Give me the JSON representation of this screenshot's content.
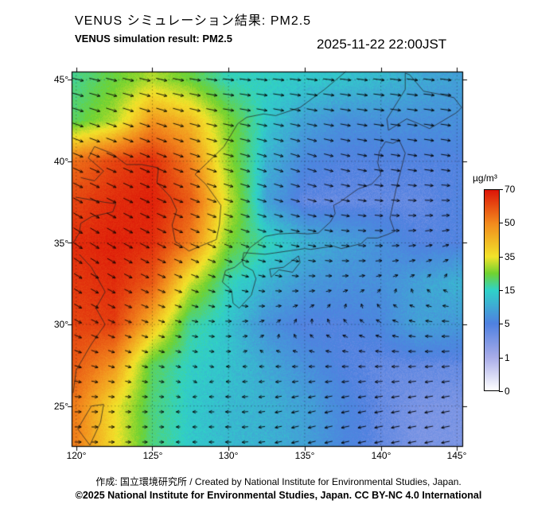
{
  "header": {
    "title_ja": "VENUS シミュレーション結果: PM2.5",
    "title_en": "VENUS simulation result: PM2.5",
    "timestamp": "2025-11-22 22:00JST"
  },
  "axes": {
    "lon_ticks": [
      "120°",
      "125°",
      "130°",
      "135°",
      "140°",
      "145°"
    ],
    "lat_ticks": [
      "45°",
      "40°",
      "35°",
      "30°",
      "25°"
    ],
    "lon_values": [
      120,
      125,
      130,
      135,
      140,
      145
    ],
    "lat_values": [
      45,
      40,
      35,
      30,
      25
    ]
  },
  "colorbar": {
    "unit": "µg/m³",
    "ticks": [
      "70",
      "50",
      "35",
      "15",
      "5",
      "1",
      "0"
    ],
    "stops": [
      {
        "v": 0,
        "t": 0,
        "c": "#ffffff"
      },
      {
        "v": 1,
        "t": 0.1667,
        "c": "#a7abe8"
      },
      {
        "v": 5,
        "t": 0.3333,
        "c": "#4f80e0"
      },
      {
        "v": 15,
        "t": 0.5,
        "c": "#2fd2c8"
      },
      {
        "v": 25,
        "t": 0.5833,
        "c": "#6fd231"
      },
      {
        "v": 35,
        "t": 0.6667,
        "c": "#f2e32a"
      },
      {
        "v": 50,
        "t": 0.8333,
        "c": "#f28a1d"
      },
      {
        "v": 70,
        "t": 1,
        "c": "#dd1508"
      }
    ]
  },
  "footer": {
    "credit": "作成: 国立環境研究所 / Created by National Institute for Environmental Studies, Japan.",
    "license": "©2025 National Institute for Environmental Studies, Japan. CC BY-NC 4.0 International"
  },
  "chart_data": {
    "type": "heatmap",
    "title": "VENUS simulation result: PM2.5",
    "unit": "µg/m³",
    "view_lon": [
      119.7,
      145.4
    ],
    "view_lat": [
      22.5,
      45.5
    ],
    "grid_lon": [
      120,
      122.5,
      125,
      127.5,
      130,
      132.5,
      135,
      137.5,
      140,
      142.5,
      145
    ],
    "grid_lat": [
      45,
      42.5,
      40,
      37.5,
      35,
      32.5,
      30,
      27.5,
      25
    ],
    "pm25": [
      [
        19,
        24,
        30,
        24,
        16,
        15,
        14,
        13,
        12,
        10,
        9
      ],
      [
        22,
        30,
        48,
        42,
        26,
        14,
        9,
        7,
        7,
        7,
        7
      ],
      [
        55,
        62,
        66,
        52,
        28,
        11,
        6,
        5,
        5,
        5,
        5
      ],
      [
        62,
        66,
        68,
        58,
        32,
        9,
        4,
        4,
        4,
        4,
        5
      ],
      [
        66,
        68,
        66,
        52,
        26,
        16,
        11,
        9,
        7,
        5,
        5
      ],
      [
        64,
        66,
        58,
        32,
        16,
        11,
        8,
        7,
        7,
        9,
        11
      ],
      [
        62,
        63,
        42,
        18,
        13,
        7,
        5,
        5,
        6,
        9,
        8
      ],
      [
        58,
        48,
        22,
        15,
        13,
        10,
        7,
        5,
        4,
        4,
        4
      ],
      [
        52,
        36,
        20,
        14,
        12,
        11,
        9,
        6,
        4,
        3,
        3
      ]
    ],
    "wind": {
      "grid_lon": [
        120,
        125,
        130,
        135,
        140,
        145
      ],
      "grid_lat": [
        45,
        40,
        35,
        30,
        25
      ],
      "u": [
        [
          8,
          8,
          8,
          8,
          8,
          8
        ],
        [
          7,
          7,
          7,
          6,
          6,
          6
        ],
        [
          6,
          6,
          5,
          5,
          4,
          3
        ],
        [
          4,
          3,
          2,
          0,
          -2,
          -4
        ],
        [
          3,
          1,
          -2,
          -4,
          -5,
          -5
        ]
      ],
      "v": [
        [
          -2,
          -2,
          -1,
          -1,
          -1,
          -1
        ],
        [
          -3,
          -3,
          -2,
          -2,
          -1,
          -1
        ],
        [
          -4,
          -3,
          -2,
          -1,
          0,
          1
        ],
        [
          -2,
          -1,
          0,
          1,
          1,
          0
        ],
        [
          0,
          0,
          0,
          -1,
          -1,
          -1
        ]
      ]
    },
    "coastlines": [
      [
        [
          124.3,
          39.8
        ],
        [
          123.3,
          39.8
        ],
        [
          122.3,
          40.5
        ],
        [
          121.2,
          40.9
        ],
        [
          120.8,
          40.2
        ],
        [
          121.8,
          39.4
        ],
        [
          121.2,
          38.8
        ],
        [
          120.3,
          39.0
        ]
      ],
      [
        [
          120.0,
          37.8
        ],
        [
          121.8,
          37.5
        ],
        [
          122.6,
          37.4
        ],
        [
          122.4,
          36.9
        ],
        [
          121.0,
          36.6
        ],
        [
          120.3,
          36.2
        ],
        [
          120.2,
          35.6
        ],
        [
          119.8,
          35.0
        ]
      ],
      [
        [
          120.2,
          34.3
        ],
        [
          121.0,
          33.5
        ],
        [
          121.9,
          32.0
        ],
        [
          121.3,
          31.0
        ],
        [
          121.9,
          30.0
        ],
        [
          121.0,
          28.8
        ],
        [
          120.0,
          27.2
        ],
        [
          119.8,
          25.8
        ]
      ],
      [
        [
          124.3,
          39.8
        ],
        [
          125.4,
          39.6
        ],
        [
          125.3,
          38.7
        ],
        [
          126.2,
          37.8
        ],
        [
          126.6,
          37.0
        ],
        [
          126.3,
          36.1
        ],
        [
          126.5,
          35.1
        ],
        [
          127.4,
          34.5
        ],
        [
          128.4,
          34.9
        ],
        [
          129.2,
          35.2
        ],
        [
          129.4,
          36.1
        ],
        [
          129.5,
          37.3
        ],
        [
          128.5,
          38.6
        ],
        [
          127.8,
          39.2
        ],
        [
          128.6,
          39.9
        ],
        [
          129.7,
          40.9
        ],
        [
          130.6,
          42.3
        ],
        [
          131.2,
          42.7
        ]
      ],
      [
        [
          131.2,
          42.7
        ],
        [
          132.3,
          42.9
        ],
        [
          133.1,
          42.8
        ],
        [
          134.7,
          43.3
        ],
        [
          136.3,
          44.4
        ],
        [
          137.7,
          45.5
        ]
      ],
      [
        [
          130.9,
          33.9
        ],
        [
          131.0,
          34.4
        ],
        [
          132.4,
          34.3
        ],
        [
          133.9,
          34.5
        ],
        [
          135.0,
          34.65
        ],
        [
          135.4,
          34.6
        ],
        [
          136.5,
          34.75
        ],
        [
          136.9,
          34.8
        ],
        [
          137.4,
          34.65
        ],
        [
          138.7,
          34.95
        ],
        [
          139.1,
          35.3
        ],
        [
          139.8,
          35.3
        ],
        [
          140.4,
          35.5
        ],
        [
          140.9,
          35.7
        ],
        [
          140.6,
          36.5
        ],
        [
          141.0,
          38.3
        ],
        [
          141.6,
          40.5
        ],
        [
          141.2,
          41.3
        ],
        [
          140.8,
          41.1
        ],
        [
          140.3,
          41.2
        ],
        [
          139.9,
          40.6
        ],
        [
          139.8,
          39.9
        ],
        [
          140.0,
          39.2
        ],
        [
          139.4,
          38.6
        ],
        [
          138.5,
          38.3
        ],
        [
          137.3,
          37.5
        ],
        [
          136.9,
          37.3
        ],
        [
          137.0,
          36.8
        ],
        [
          136.7,
          36.3
        ],
        [
          135.9,
          35.6
        ],
        [
          135.2,
          35.55
        ],
        [
          134.4,
          35.6
        ],
        [
          133.3,
          35.55
        ],
        [
          132.4,
          35.4
        ],
        [
          131.4,
          34.7
        ],
        [
          130.9,
          33.9
        ]
      ],
      [
        [
          130.9,
          33.9
        ],
        [
          130.4,
          33.5
        ],
        [
          129.8,
          33.3
        ],
        [
          129.6,
          32.6
        ],
        [
          130.2,
          32.1
        ],
        [
          130.3,
          31.3
        ],
        [
          130.7,
          31.0
        ],
        [
          131.1,
          31.4
        ],
        [
          131.5,
          31.8
        ],
        [
          131.8,
          32.8
        ],
        [
          131.6,
          33.3
        ],
        [
          131.0,
          33.6
        ],
        [
          130.9,
          33.9
        ]
      ],
      [
        [
          132.7,
          33.4
        ],
        [
          133.6,
          33.5
        ],
        [
          134.6,
          34.2
        ],
        [
          134.7,
          33.8
        ],
        [
          134.2,
          33.2
        ],
        [
          133.3,
          33.35
        ],
        [
          132.8,
          32.9
        ],
        [
          132.7,
          33.4
        ]
      ],
      [
        [
          140.4,
          42.6
        ],
        [
          140.5,
          41.9
        ],
        [
          141.7,
          42.6
        ],
        [
          142.5,
          42.3
        ],
        [
          143.2,
          42.0
        ],
        [
          145.0,
          43.0
        ],
        [
          145.3,
          43.3
        ],
        [
          144.8,
          43.9
        ],
        [
          143.9,
          44.1
        ],
        [
          142.8,
          44.3
        ],
        [
          141.9,
          45.3
        ],
        [
          141.6,
          45.4
        ],
        [
          141.6,
          44.4
        ],
        [
          140.8,
          43.2
        ],
        [
          140.4,
          42.6
        ]
      ],
      [
        [
          121.8,
          25.1
        ],
        [
          121.0,
          25.0
        ],
        [
          120.1,
          23.6
        ],
        [
          120.9,
          22.6
        ],
        [
          121.6,
          24.0
        ],
        [
          121.8,
          25.1
        ]
      ]
    ]
  }
}
